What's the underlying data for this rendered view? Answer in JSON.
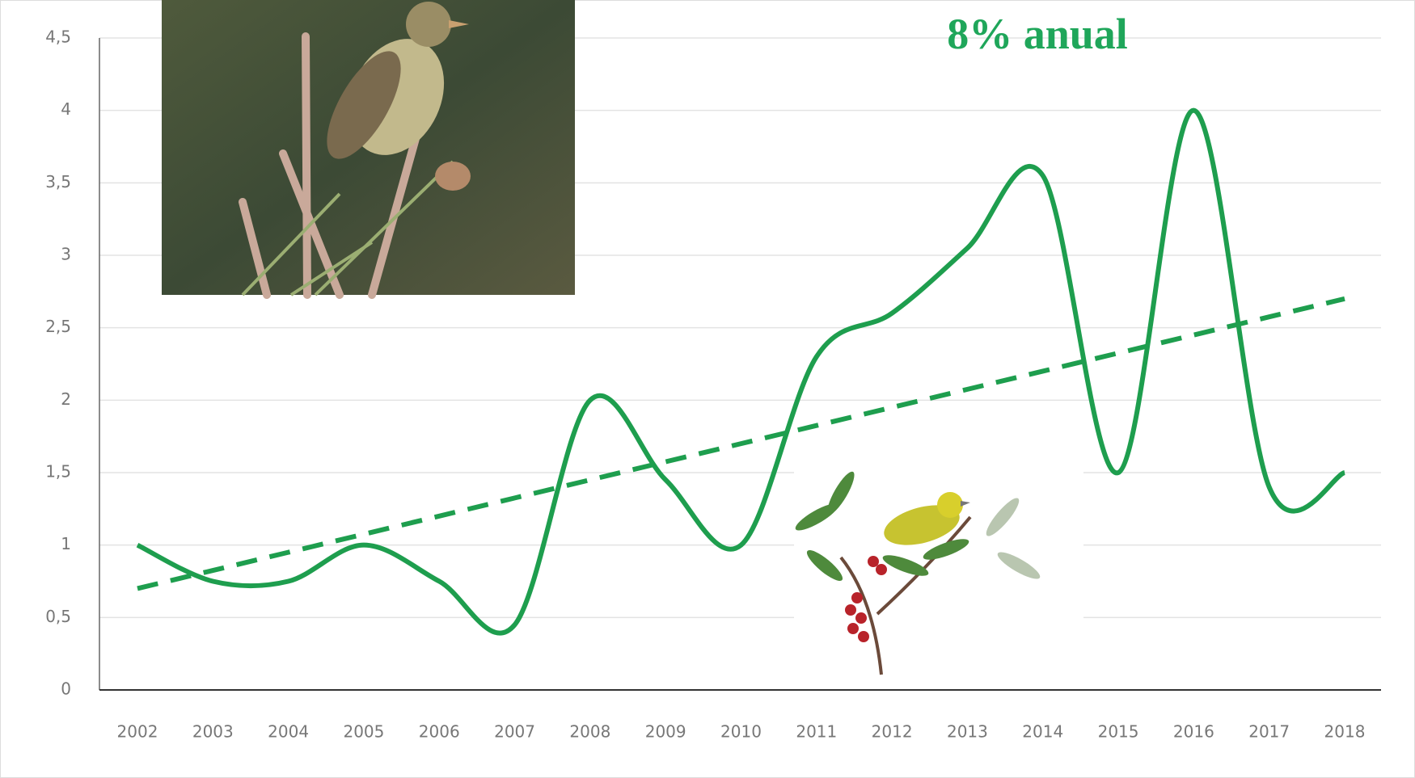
{
  "chart_data": {
    "type": "line",
    "annotation": "8% anual",
    "categories": [
      "2002",
      "2003",
      "2004",
      "2005",
      "2006",
      "2007",
      "2008",
      "2009",
      "2010",
      "2011",
      "2012",
      "2013",
      "2014",
      "2015",
      "2016",
      "2017",
      "2018"
    ],
    "series": [
      {
        "color": "#1e9e4e",
        "values": [
          1.0,
          0.75,
          0.75,
          1.0,
          0.75,
          0.45,
          2.0,
          1.45,
          1.0,
          2.3,
          2.6,
          3.05,
          3.55,
          1.5,
          4.0,
          1.4,
          1.5
        ]
      },
      {
        "color": "#1e9e4e",
        "dashed": true,
        "values": [
          0.7,
          0.825,
          0.95,
          1.075,
          1.2,
          1.325,
          1.45,
          1.575,
          1.7,
          1.825,
          1.95,
          2.075,
          2.2,
          2.325,
          2.45,
          2.575,
          2.7
        ]
      }
    ],
    "ylim": [
      0,
      4.5
    ],
    "yticks": [
      {
        "value": 0,
        "label": "0"
      },
      {
        "value": 0.5,
        "label": "0,5"
      },
      {
        "value": 1,
        "label": "1"
      },
      {
        "value": 1.5,
        "label": "1,5"
      },
      {
        "value": 2,
        "label": "2"
      },
      {
        "value": 2.5,
        "label": "2,5"
      },
      {
        "value": 3,
        "label": "3"
      },
      {
        "value": 3.5,
        "label": "3,5"
      },
      {
        "value": 4,
        "label": "4"
      },
      {
        "value": 4.5,
        "label": "4,5"
      }
    ],
    "grid": true
  }
}
